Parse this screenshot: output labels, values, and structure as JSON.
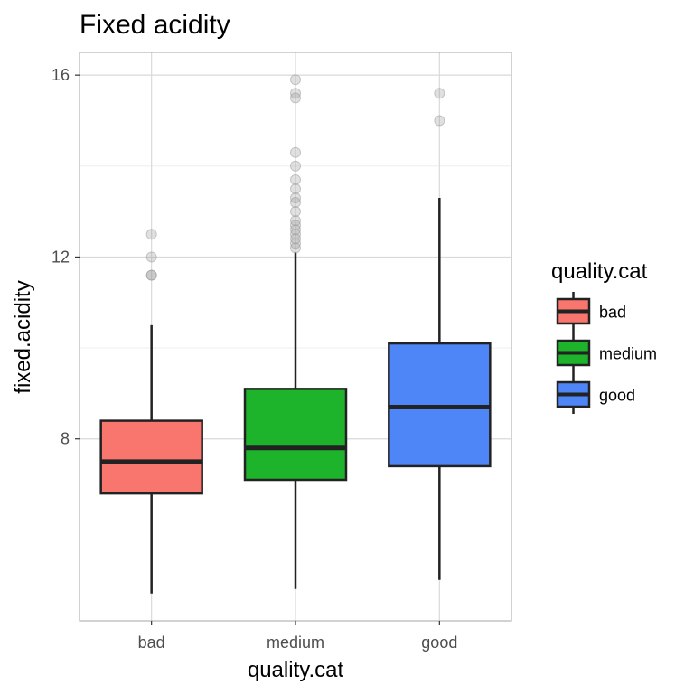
{
  "chart_data": {
    "type": "boxplot",
    "title": "Fixed acidity",
    "xlabel": "quality.cat",
    "ylabel": "fixed.acidity",
    "categories": [
      "bad",
      "medium",
      "good"
    ],
    "y_ticks": [
      8,
      12,
      16
    ],
    "y_minor_ticks": [
      6,
      10,
      14
    ],
    "ylim": [
      4,
      16.5
    ],
    "grid": true,
    "legend": {
      "title": "quality.cat",
      "position": "right",
      "entries": [
        "bad",
        "medium",
        "good"
      ]
    },
    "colors": {
      "bad": "#f8766d",
      "medium": "#1db32b",
      "good": "#4f86f7",
      "outline": "#222222",
      "outlier": "#999999",
      "grid": "#d9d9d9",
      "panel_border": "#b3b3b3"
    },
    "boxes": [
      {
        "category": "bad",
        "whisker_low": 4.6,
        "q1": 6.8,
        "median": 7.5,
        "q3": 8.4,
        "whisker_high": 10.5,
        "outliers": [
          11.6,
          11.6,
          12.0,
          12.5
        ]
      },
      {
        "category": "medium",
        "whisker_low": 4.7,
        "q1": 7.1,
        "median": 7.8,
        "q3": 9.1,
        "whisker_high": 12.1,
        "outliers": [
          12.2,
          12.3,
          12.4,
          12.5,
          12.6,
          12.7,
          12.8,
          13.0,
          13.2,
          13.3,
          13.5,
          13.7,
          14.0,
          14.3,
          15.5,
          15.6,
          15.9
        ]
      },
      {
        "category": "good",
        "whisker_low": 4.9,
        "q1": 7.4,
        "median": 8.7,
        "q3": 10.1,
        "whisker_high": 13.3,
        "outliers": [
          15.0,
          15.6
        ]
      }
    ]
  }
}
